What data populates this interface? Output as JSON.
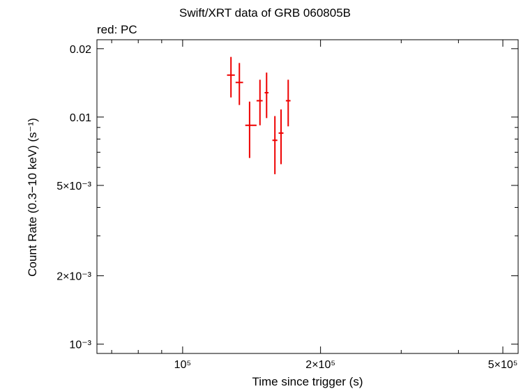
{
  "chart_data": {
    "type": "scatter",
    "title": "Swift/XRT data of GRB 060805B",
    "subtitle": "red: PC",
    "xlabel": "Time since trigger (s)",
    "ylabel": "Count Rate (0.3−10 keV) (s⁻¹)",
    "x_scale": "log",
    "y_scale": "log",
    "xlim": [
      65000,
      540000
    ],
    "ylim": [
      0.00091,
      0.0219
    ],
    "x_ticks": [
      {
        "value": 100000,
        "label": "10⁵"
      },
      {
        "value": 200000,
        "label": "2×10⁵"
      },
      {
        "value": 500000,
        "label": "5×10⁵"
      }
    ],
    "y_ticks": [
      {
        "value": 0.02,
        "label": "0.02"
      },
      {
        "value": 0.01,
        "label": "0.01"
      },
      {
        "value": 0.005,
        "label": "5×10⁻³"
      },
      {
        "value": 0.002,
        "label": "2×10⁻³"
      },
      {
        "value": 0.001,
        "label": "10⁻³"
      }
    ],
    "grid": false,
    "series": [
      {
        "color": "#ee0000",
        "points": [
          {
            "x": 127500,
            "y": 0.0153,
            "xerr": [
              125000,
              130000
            ],
            "yerr": [
              0.0122,
              0.0184
            ]
          },
          {
            "x": 133000,
            "y": 0.0142,
            "xerr": [
              130500,
              135500
            ],
            "yerr": [
              0.0113,
              0.0173
            ]
          },
          {
            "x": 140000,
            "y": 0.0092,
            "xerr": [
              137000,
              145000
            ],
            "yerr": [
              0.0066,
              0.0117
            ]
          },
          {
            "x": 147500,
            "y": 0.0118,
            "xerr": [
              145000,
              149500
            ],
            "yerr": [
              0.0092,
              0.0146
            ]
          },
          {
            "x": 152500,
            "y": 0.0128,
            "xerr": [
              151000,
              154000
            ],
            "yerr": [
              0.0099,
              0.0157
            ]
          },
          {
            "x": 159000,
            "y": 0.0079,
            "xerr": [
              157000,
              161000
            ],
            "yerr": [
              0.0056,
              0.0101
            ]
          },
          {
            "x": 164000,
            "y": 0.0085,
            "xerr": [
              162000,
              166000
            ],
            "yerr": [
              0.0062,
              0.0108
            ]
          },
          {
            "x": 170000,
            "y": 0.0118,
            "xerr": [
              168000,
              172000
            ],
            "yerr": [
              0.0091,
              0.0146
            ]
          }
        ]
      }
    ]
  }
}
